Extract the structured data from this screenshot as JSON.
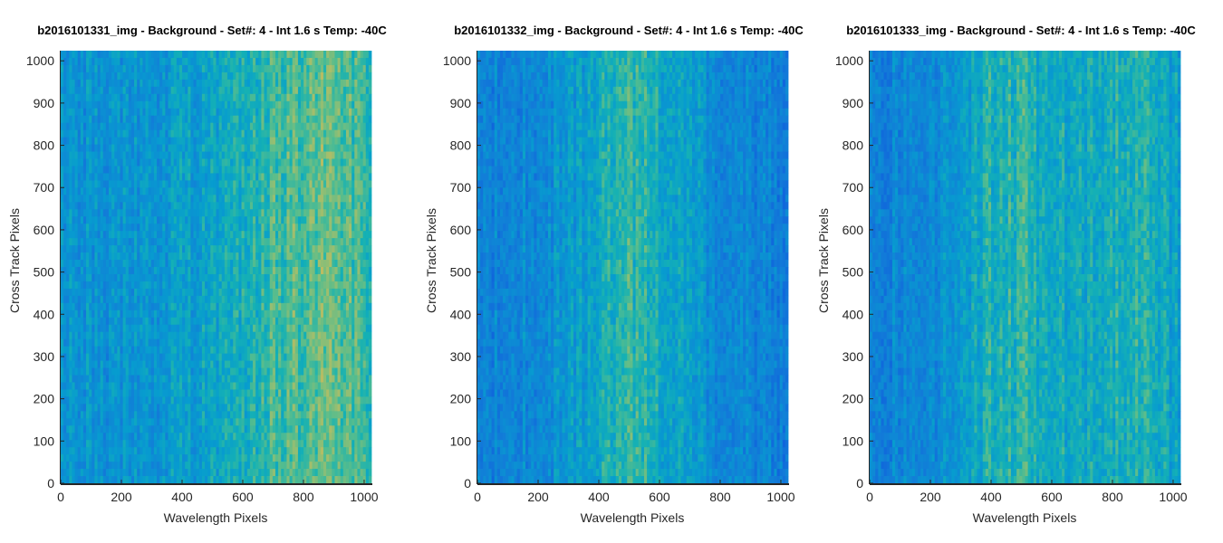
{
  "chart_data": [
    {
      "type": "heatmap",
      "title": "b2016101331_img - Background - Set#: 4 - Int 1.6 s Temp: -40C",
      "xlabel": "Wavelength Pixels",
      "ylabel": "Cross Track Pixels",
      "xlim": [
        0,
        1024
      ],
      "ylim": [
        0,
        1024
      ],
      "xticks": [
        0,
        200,
        400,
        600,
        800,
        1000
      ],
      "yticks": [
        0,
        100,
        200,
        300,
        400,
        500,
        600,
        700,
        800,
        900,
        1000
      ],
      "colormap": "parula",
      "column_profile": {
        "x": [
          0,
          200,
          400,
          500,
          600,
          700,
          800,
          900,
          1024
        ],
        "level": [
          0.42,
          0.4,
          0.44,
          0.48,
          0.55,
          0.6,
          0.64,
          0.66,
          0.58
        ]
      }
    },
    {
      "type": "heatmap",
      "title": "b2016101332_img - Background - Set#: 4 - Int 1.6 s Temp: -40C",
      "xlabel": "Wavelength Pixels",
      "ylabel": "Cross Track Pixels",
      "xlim": [
        0,
        1024
      ],
      "ylim": [
        0,
        1024
      ],
      "xticks": [
        0,
        200,
        400,
        600,
        800,
        1000
      ],
      "yticks": [
        0,
        100,
        200,
        300,
        400,
        500,
        600,
        700,
        800,
        900,
        1000
      ],
      "colormap": "parula",
      "column_profile": {
        "x": [
          0,
          200,
          350,
          450,
          500,
          600,
          700,
          800,
          1024
        ],
        "level": [
          0.32,
          0.36,
          0.45,
          0.56,
          0.6,
          0.52,
          0.45,
          0.36,
          0.3
        ]
      }
    },
    {
      "type": "heatmap",
      "title": "b2016101333_img - Background - Set#: 4 - Int 1.6 s Temp: -40C",
      "xlabel": "Wavelength Pixels",
      "ylabel": "Cross Track Pixels",
      "xlim": [
        0,
        1024
      ],
      "ylim": [
        0,
        1024
      ],
      "xticks": [
        0,
        200,
        400,
        600,
        800,
        1000
      ],
      "yticks": [
        0,
        100,
        200,
        300,
        400,
        500,
        600,
        700,
        800,
        900,
        1000
      ],
      "colormap": "parula",
      "column_profile": {
        "x": [
          0,
          150,
          300,
          400,
          500,
          600,
          700,
          800,
          900,
          1024
        ],
        "level": [
          0.35,
          0.34,
          0.42,
          0.55,
          0.58,
          0.52,
          0.48,
          0.54,
          0.58,
          0.45
        ]
      }
    }
  ]
}
